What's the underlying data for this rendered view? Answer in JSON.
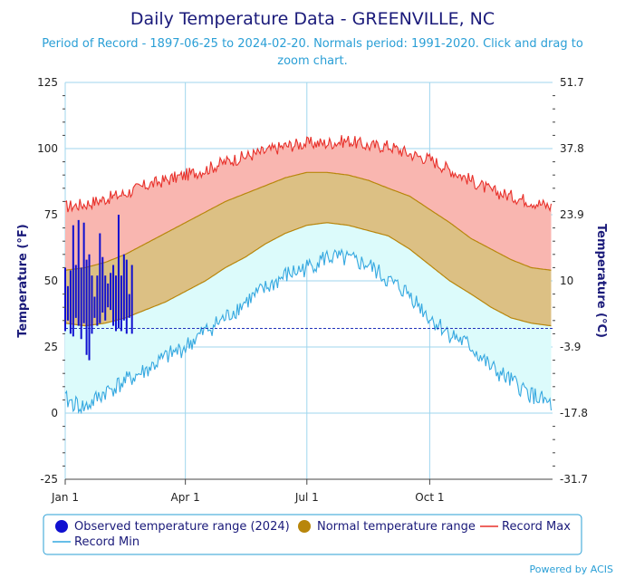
{
  "header": {
    "title": "Daily Temperature Data - GREENVILLE, NC",
    "subtitle_line1": "Period of Record - 1897-06-25 to 2024-02-20. Normals period: 1991-2020. Click and drag to",
    "subtitle_line2": "zoom chart."
  },
  "credits": "Powered by ACIS",
  "colors": {
    "record_max_line": "#e8302a",
    "record_max_fill": "#f9b6b0",
    "record_min_line": "#35a8e0",
    "record_min_fill": "#dcfbfb",
    "normal_line": "#b8860b",
    "normal_fill": "#dcc084",
    "observed": "#1010d0",
    "freeze_line": "#2233bb",
    "grid": "#9fd6ee",
    "axis_text": "#1a1a7a"
  },
  "chart_data": {
    "type": "area",
    "x_tick_labels": [
      "Jan 1",
      "Apr 1",
      "Jul 1",
      "Oct 1"
    ],
    "x_tick_days": [
      0,
      90,
      181,
      273
    ],
    "y_left": {
      "label": "Temperature (°F)",
      "ticks": [
        "125",
        "100",
        "75",
        "50",
        "25",
        "0",
        "-25"
      ],
      "range": [
        -25,
        125
      ]
    },
    "y_right": {
      "label": "Temperature (°C)",
      "ticks": [
        "51.7",
        "37.8",
        "23.9",
        "10",
        "-3.9",
        "-17.8",
        "-31.7"
      ]
    },
    "freezing_line_f": 32,
    "grid": true,
    "legend_position": "bottom",
    "legend": [
      {
        "name": "Observed temperature range (2024)",
        "marker": "circle",
        "color": "#1010d0"
      },
      {
        "name": "Normal temperature range",
        "marker": "circle",
        "color": "#b8860b"
      },
      {
        "name": "Record Max",
        "marker": "line",
        "color": "#e8302a"
      },
      {
        "name": "Record Min",
        "marker": "line",
        "color": "#35a8e0"
      }
    ],
    "series": {
      "record_max": {
        "day": [
          0,
          15,
          30,
          45,
          60,
          75,
          90,
          105,
          120,
          135,
          150,
          165,
          181,
          196,
          212,
          227,
          242,
          258,
          273,
          288,
          304,
          319,
          334,
          349,
          364
        ],
        "value": [
          78,
          79,
          81,
          83,
          86,
          88,
          90,
          92,
          95,
          97,
          99,
          101,
          102,
          102,
          103,
          101,
          101,
          98,
          96,
          92,
          88,
          84,
          82,
          80,
          78
        ]
      },
      "record_min": {
        "day": [
          0,
          15,
          30,
          45,
          60,
          75,
          90,
          105,
          120,
          135,
          150,
          165,
          181,
          196,
          212,
          227,
          242,
          258,
          273,
          288,
          304,
          319,
          334,
          349,
          364
        ],
        "value": [
          5,
          2,
          8,
          12,
          16,
          21,
          25,
          31,
          36,
          42,
          47,
          52,
          55,
          59,
          58,
          56,
          50,
          45,
          36,
          30,
          25,
          17,
          12,
          7,
          3
        ]
      },
      "normal_max": {
        "day": [
          0,
          15,
          30,
          45,
          60,
          75,
          90,
          105,
          120,
          135,
          150,
          165,
          181,
          196,
          212,
          227,
          242,
          258,
          273,
          288,
          304,
          319,
          334,
          349,
          364
        ],
        "value": [
          54,
          55,
          57,
          60,
          64,
          68,
          72,
          76,
          80,
          83,
          86,
          89,
          91,
          91,
          90,
          88,
          85,
          82,
          77,
          72,
          66,
          62,
          58,
          55,
          54
        ]
      },
      "normal_min": {
        "day": [
          0,
          15,
          30,
          45,
          60,
          75,
          90,
          105,
          120,
          135,
          150,
          165,
          181,
          196,
          212,
          227,
          242,
          258,
          273,
          288,
          304,
          319,
          334,
          349,
          364
        ],
        "value": [
          34,
          33,
          34,
          36,
          39,
          42,
          46,
          50,
          55,
          59,
          64,
          68,
          71,
          72,
          71,
          69,
          67,
          62,
          56,
          50,
          45,
          40,
          36,
          34,
          33
        ]
      },
      "observed_2024": {
        "day": [
          0,
          2,
          4,
          6,
          8,
          10,
          12,
          14,
          16,
          18,
          20,
          22,
          24,
          26,
          28,
          30,
          32,
          34,
          36,
          38,
          40,
          42,
          44,
          46,
          48,
          50
        ],
        "low": [
          31,
          35,
          30,
          29,
          36,
          33,
          28,
          34,
          22,
          20,
          30,
          36,
          33,
          34,
          38,
          35,
          40,
          39,
          33,
          31,
          32,
          31,
          35,
          30,
          36,
          30
        ],
        "high": [
          55,
          48,
          54,
          71,
          56,
          73,
          55,
          72,
          58,
          60,
          52,
          44,
          52,
          68,
          59,
          52,
          49,
          53,
          56,
          52,
          75,
          52,
          60,
          58,
          45,
          56
        ]
      }
    }
  }
}
